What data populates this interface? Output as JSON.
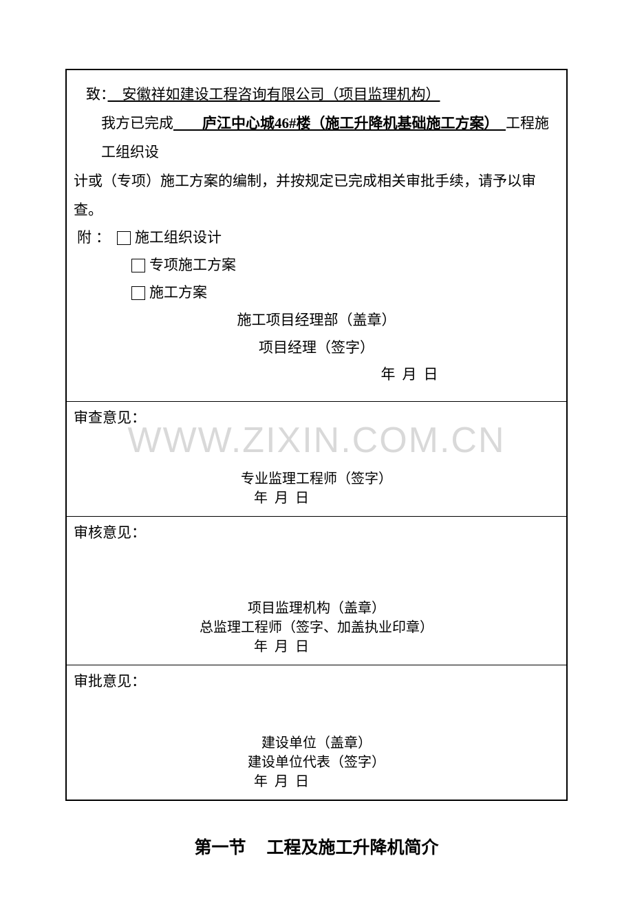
{
  "section1": {
    "to_label": "致：",
    "to_value": "　安徽祥如建设工程咨询有限公司（项目监理机构）",
    "line2_pre": "我方已完成",
    "line2_underline": "　　庐江中心城46#楼（施工升降机基础施工方案）　",
    "line2_post": "工程施工组织设",
    "line3": "计或（专项）施工方案的编制，并按规定已完成相关审批手续，请予以审查。",
    "attach_label": "附：",
    "cb1": "施工组织设计",
    "cb2": "专项施工方案",
    "cb3": "施工方案",
    "stamp1": "施工项目经理部（盖章）",
    "stamp2": "项目经理（签字）",
    "date": "年月日"
  },
  "section2": {
    "label": "审查意见：",
    "sig": "专业监理工程师（签字）",
    "date": "年月日"
  },
  "section3": {
    "label": "审核意见：",
    "sig1": "项目监理机构（盖章）",
    "sig2": "总监理工程师（签字、加盖执业印章）",
    "date": "年月日"
  },
  "section4": {
    "label": "审批意见：",
    "sig1": "建设单位（盖章）",
    "sig2": "建设单位代表（签字）",
    "date": "年月日"
  },
  "watermark": "WWW.ZIXIN.COM.CN",
  "heading_pre": "第一节",
  "heading_post": "工程及施工升降机简介"
}
